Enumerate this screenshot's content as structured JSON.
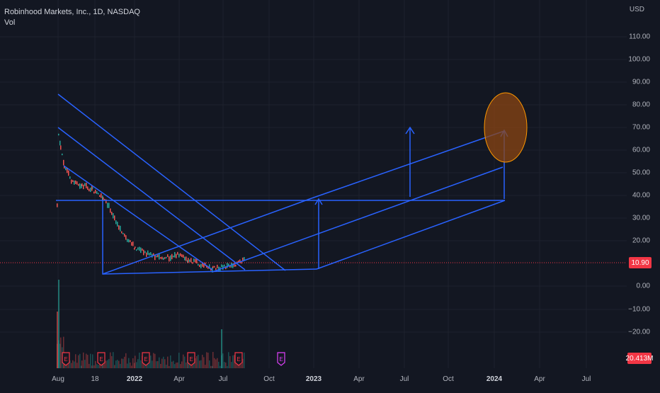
{
  "header": {
    "symbol_line": "Robinhood Markets, Inc., 1D, NASDAQ",
    "volume_label": "Vol"
  },
  "price_axis": {
    "currency": "USD",
    "ticks": [
      "110.00",
      "100.00",
      "90.00",
      "80.00",
      "70.00",
      "60.00",
      "50.00",
      "40.00",
      "30.00",
      "20.00",
      "0.00",
      "−10.00",
      "−20.00"
    ],
    "last_price": "10.90",
    "volume_value": "20.413M"
  },
  "time_axis": {
    "ticks": [
      "Aug",
      "18",
      "2022",
      "Apr",
      "Jul",
      "Oct",
      "2023",
      "Apr",
      "Jul",
      "Oct",
      "2024",
      "Apr",
      "Jul"
    ]
  },
  "earnings_marker": "E",
  "colors": {
    "background": "#131722",
    "drawing_lines": "#2962ff",
    "up_candle": "#26a69a",
    "down_candle": "#ef5350",
    "ellipse_fill": "#8b4513",
    "price_tag": "#f23645"
  },
  "chart_data": {
    "type": "candlestick",
    "title": "Robinhood Markets, Inc., 1D, NASDAQ",
    "y_unit": "USD",
    "ylim": [
      -28,
      118
    ],
    "approximate_close_path": [
      {
        "x": "2021-07",
        "y": 38
      },
      {
        "x": "2021-08",
        "y": 70
      },
      {
        "x": "2021-09",
        "y": 44
      },
      {
        "x": "2021-11",
        "y": 36
      },
      {
        "x": "2021-12",
        "y": 20
      },
      {
        "x": "2022-02",
        "y": 13
      },
      {
        "x": "2022-04",
        "y": 11
      },
      {
        "x": "2022-06",
        "y": 8
      },
      {
        "x": "2022-08",
        "y": 10.9
      }
    ],
    "last_price": 10.9
  }
}
